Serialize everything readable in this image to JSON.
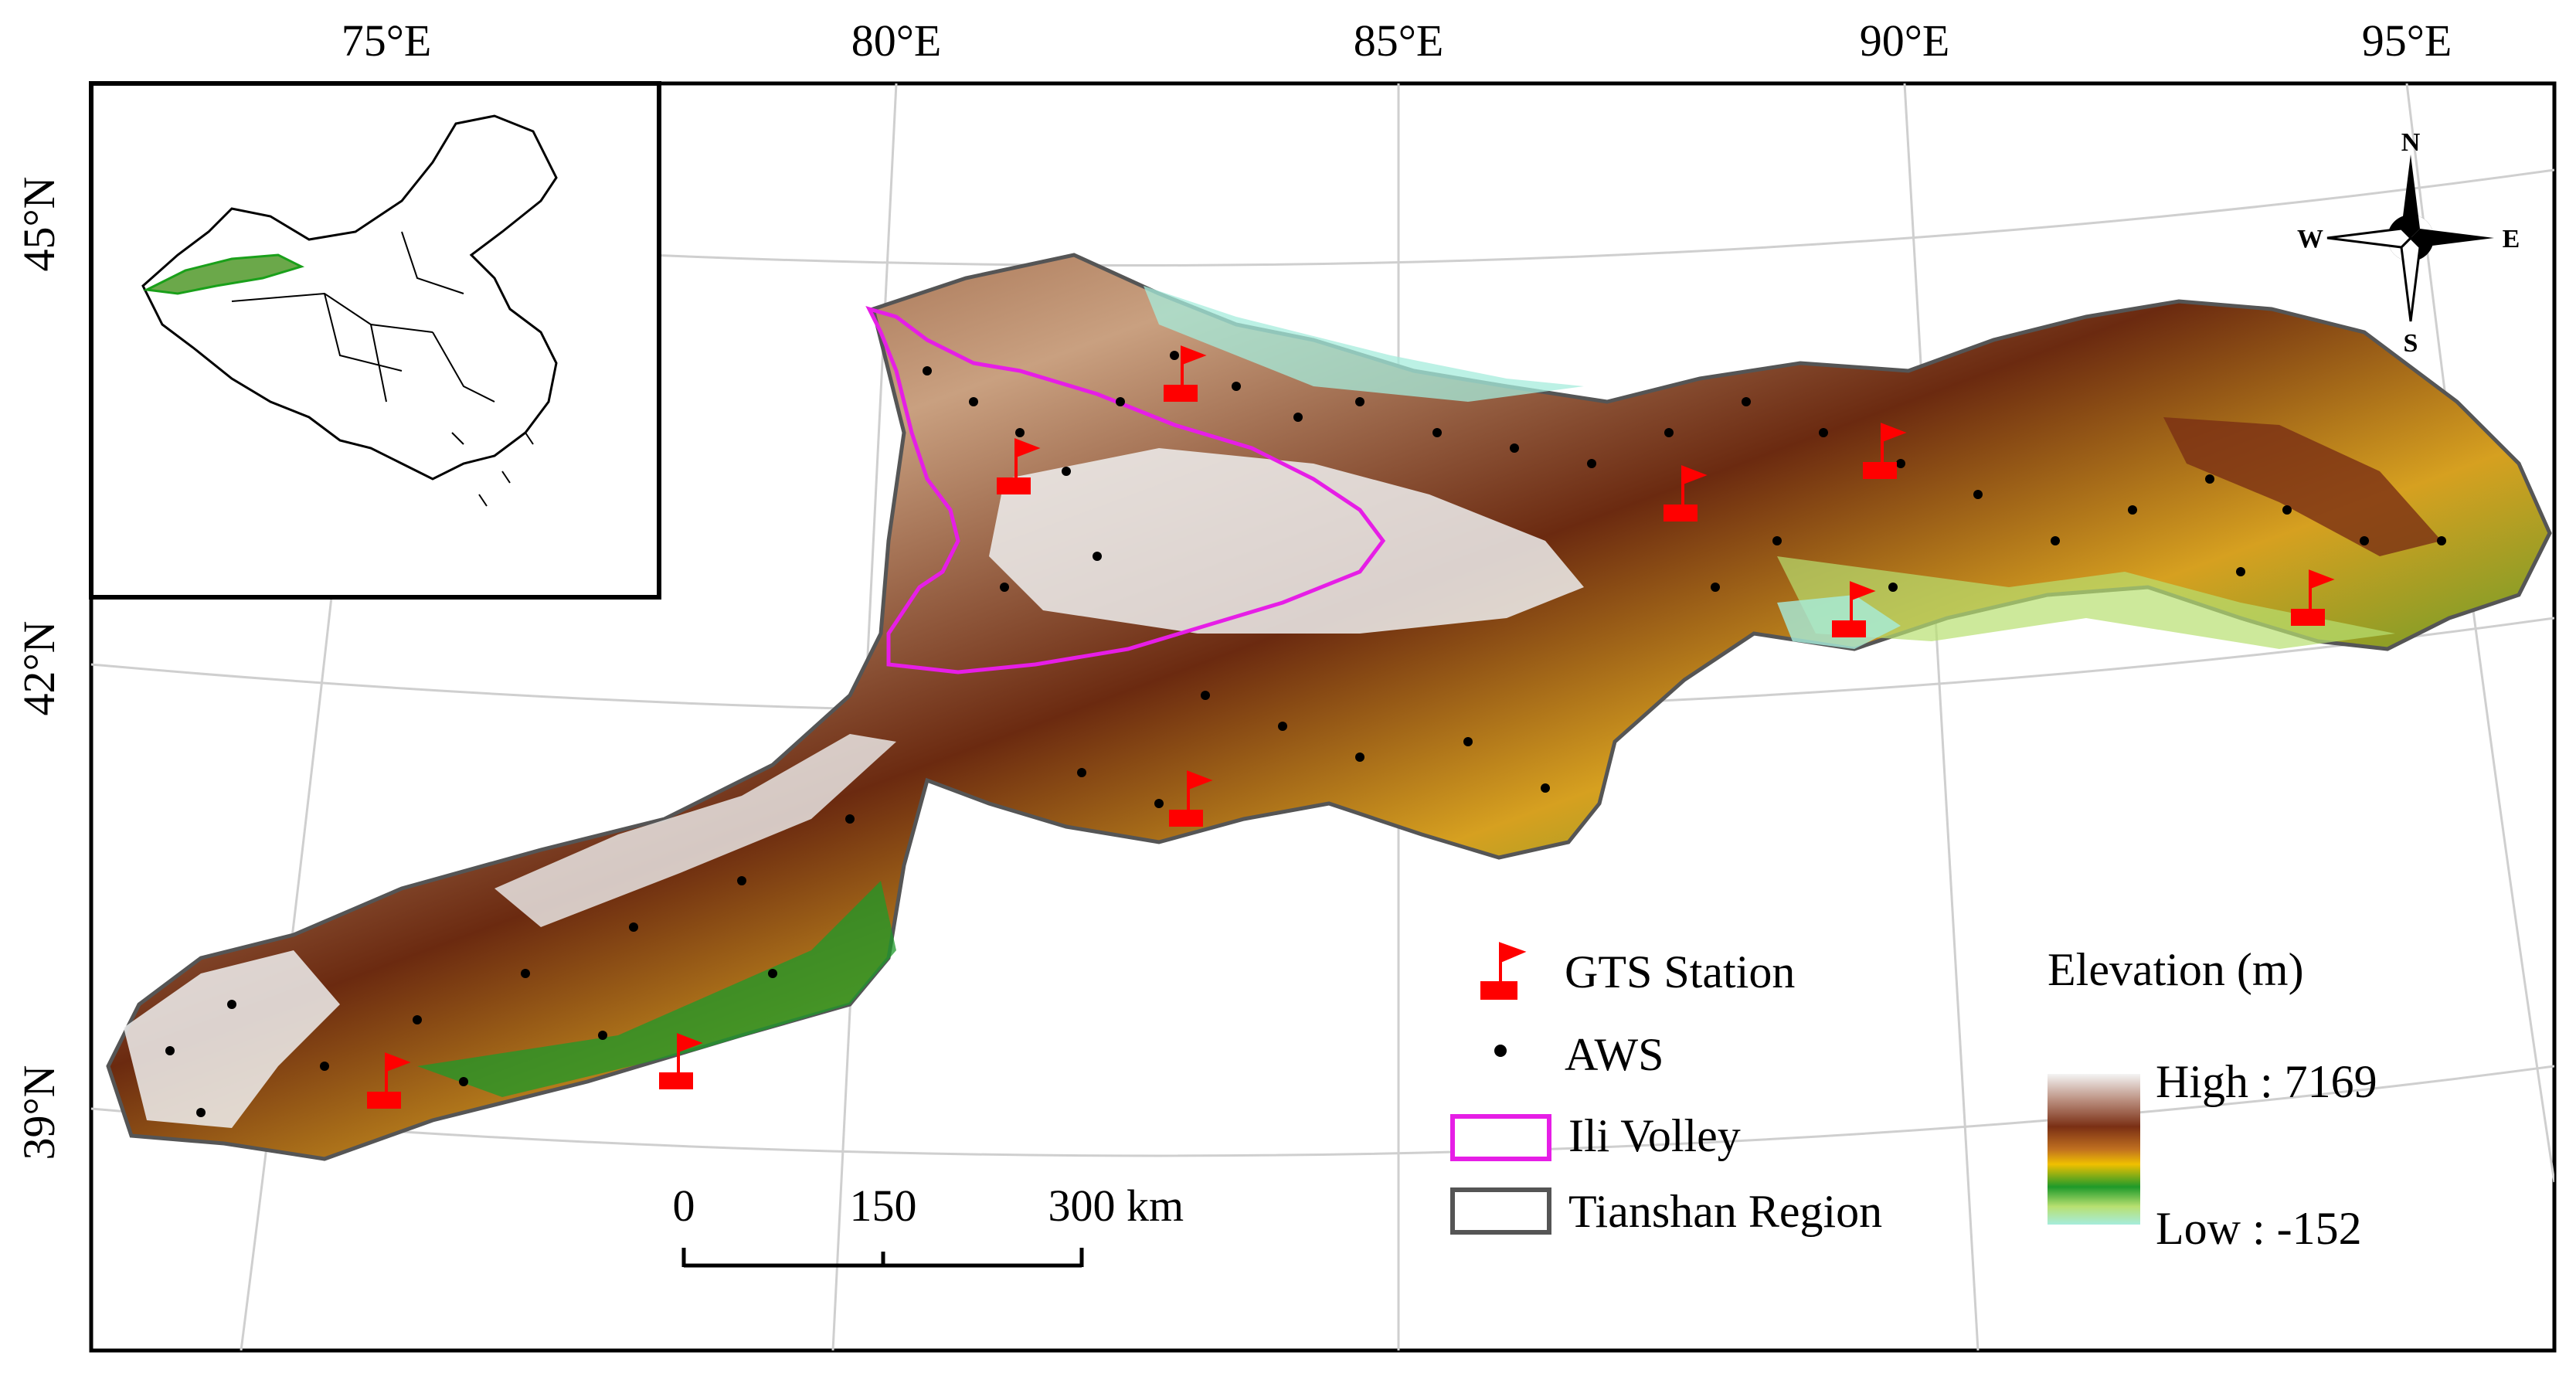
{
  "map": {
    "longitude_labels": [
      "75°E",
      "80°E",
      "85°E",
      "90°E",
      "95°E"
    ],
    "latitude_labels": [
      "45°N",
      "42°N",
      "39°N"
    ]
  },
  "compass": {
    "north": "N",
    "south": "S",
    "east": "E",
    "west": "W"
  },
  "legend": {
    "gts_station": "GTS Station",
    "aws": "AWS",
    "ili_volley": "Ili Volley",
    "tianshan_region": "Tianshan Region"
  },
  "elevation": {
    "title": "Elevation (m)",
    "high_label": "High : 7169",
    "low_label": "Low : -152"
  },
  "scale_bar": {
    "tick_0": "0",
    "tick_150": "150",
    "tick_300": "300",
    "unit": "km"
  },
  "colors": {
    "ili_volley_outline": "#e61ee6",
    "region_outline": "#555555",
    "gts_station": "#ff0000",
    "aws": "#000000",
    "elevation_ramp": [
      "#f4f4f4",
      "#8b3a1a",
      "#f0b400",
      "#1f9a2a",
      "#a8ecd4"
    ]
  }
}
